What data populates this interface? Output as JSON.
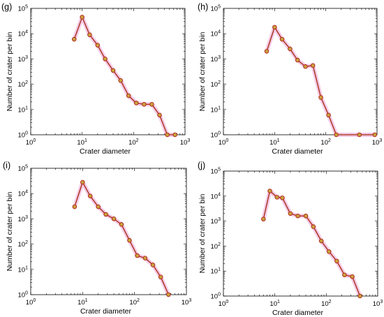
{
  "chart_data": [
    {
      "panel_label": "(g)",
      "type": "line",
      "xlabel": "Crater diameter",
      "ylabel": "Number of crater per bin",
      "xscale": "log",
      "yscale": "log",
      "xlim": [
        1,
        1000
      ],
      "ylim": [
        1,
        100000
      ],
      "grid": false,
      "x_tick_labels": [
        "10^0",
        "10^1",
        "10^2",
        "10^3"
      ],
      "y_tick_labels": [
        "10^0",
        "10^1",
        "10^2",
        "10^3",
        "10^4",
        "10^5"
      ],
      "x": [
        7,
        10,
        14,
        20,
        28,
        40,
        56,
        80,
        113,
        160,
        226,
        320,
        452,
        640
      ],
      "y": [
        6000,
        45000,
        9000,
        3500,
        1000,
        350,
        140,
        35,
        18,
        16,
        16,
        6,
        1,
        1
      ]
    },
    {
      "panel_label": "(h)",
      "type": "line",
      "xlabel": "Crater diameter",
      "ylabel": "Number of crater per bin",
      "xscale": "log",
      "yscale": "log",
      "xlim": [
        1,
        1000
      ],
      "ylim": [
        1,
        100000
      ],
      "grid": false,
      "x_tick_labels": [
        "10^0",
        "10^1",
        "10^2",
        "10^3"
      ],
      "y_tick_labels": [
        "10^0",
        "10^1",
        "10^2",
        "10^3",
        "10^4",
        "10^5"
      ],
      "x": [
        7,
        10,
        14,
        20,
        28,
        40,
        56,
        80,
        113,
        160,
        452,
        905
      ],
      "y": [
        2000,
        18000,
        6000,
        2500,
        900,
        500,
        550,
        30,
        6,
        1,
        1,
        1
      ]
    },
    {
      "panel_label": "(i)",
      "type": "line",
      "xlabel": "Crater diameter",
      "ylabel": "Number of crater per bin",
      "xscale": "log",
      "yscale": "log",
      "xlim": [
        1,
        1000
      ],
      "ylim": [
        1,
        100000
      ],
      "grid": false,
      "x_tick_labels": [
        "10^0",
        "10^1",
        "10^2",
        "10^3"
      ],
      "y_tick_labels": [
        "10^0",
        "10^1",
        "10^2",
        "10^3",
        "10^4",
        "10^5"
      ],
      "x": [
        7,
        10,
        14,
        20,
        28,
        40,
        56,
        80,
        113,
        160,
        226,
        320,
        452
      ],
      "y": [
        3000,
        28000,
        8000,
        3000,
        1500,
        1000,
        600,
        140,
        35,
        28,
        15,
        5,
        1
      ]
    },
    {
      "panel_label": "(j)",
      "type": "line",
      "xlabel": "Crater diameter",
      "ylabel": "Number of crater per bin",
      "xscale": "log",
      "yscale": "log",
      "xlim": [
        1,
        1000
      ],
      "ylim": [
        1,
        100000
      ],
      "grid": false,
      "x_tick_labels": [
        "10^0",
        "10^1",
        "10^2",
        "10^3"
      ],
      "y_tick_labels": [
        "10^0",
        "10^1",
        "10^2",
        "10^3",
        "10^4",
        "10^5"
      ],
      "x": [
        6,
        8,
        11,
        14,
        20,
        28,
        40,
        56,
        80,
        113,
        160,
        226,
        320,
        452
      ],
      "y": [
        1200,
        16000,
        9000,
        8500,
        2000,
        1600,
        1600,
        600,
        160,
        60,
        25,
        7,
        6,
        1
      ]
    }
  ],
  "colors": {
    "line": "#a42a12",
    "marker_face": "#c8a23c",
    "marker_edge": "#b0201a",
    "halo": "#f2bfe1",
    "axis": "#000000"
  }
}
